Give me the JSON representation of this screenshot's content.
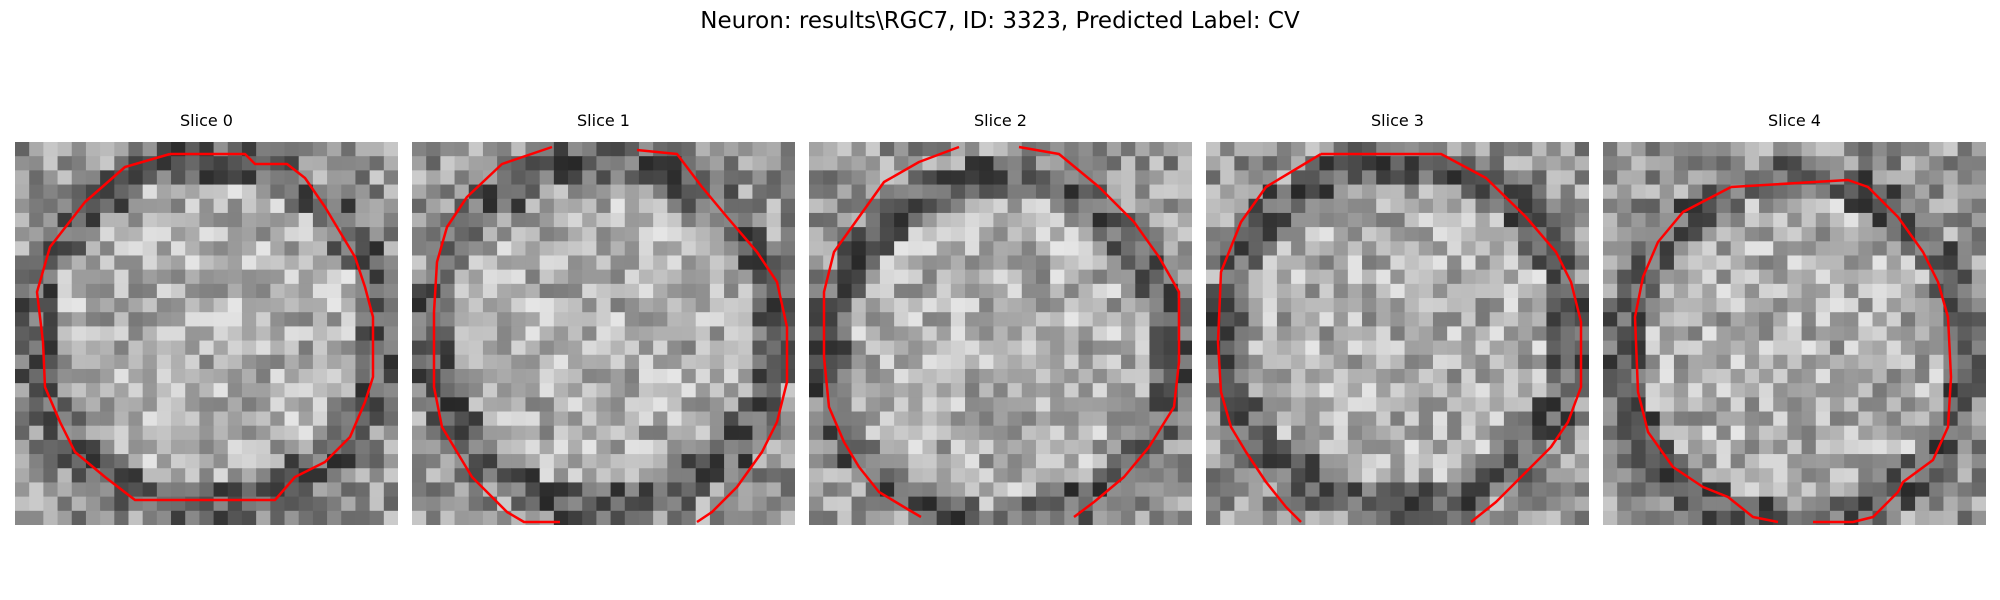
{
  "figure": {
    "title": "Neuron: results\\RGC7, ID: 3323, Predicted Label: CV"
  },
  "panels": [
    {
      "title": "Slice 0"
    },
    {
      "title": "Slice 1"
    },
    {
      "title": "Slice 2"
    },
    {
      "title": "Slice 3"
    },
    {
      "title": "Slice 4"
    }
  ],
  "colors": {
    "contour": "#ff0000",
    "background": "#ffffff"
  }
}
